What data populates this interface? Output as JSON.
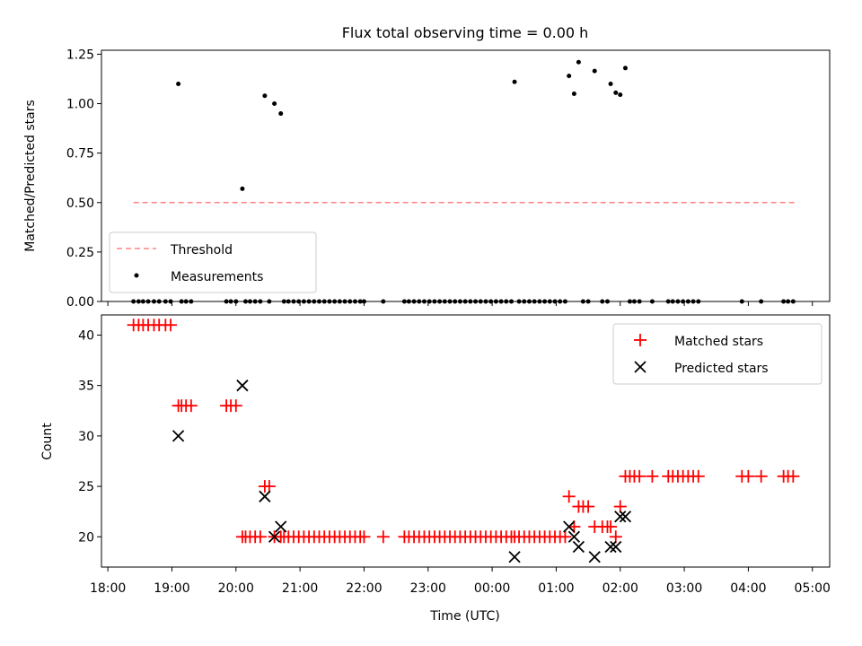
{
  "chart_data": [
    {
      "type": "scatter",
      "title": "Flux total observing time = 0.00 h",
      "xlabel": "",
      "ylabel": "Matched/Predicted stars",
      "xlim": [
        17.9,
        29.27
      ],
      "ylim": [
        0,
        1.27
      ],
      "yticks": [
        0,
        0.25,
        0.5,
        0.75,
        1.0,
        1.25
      ],
      "ytick_labels": [
        "0.00",
        "0.25",
        "0.50",
        "0.75",
        "1.00",
        "1.25"
      ],
      "legend": [
        "Threshold",
        "Measurements"
      ],
      "legend_position": "bottom-left",
      "threshold": {
        "name": "Threshold",
        "y": 0.5,
        "x_range": [
          18.4,
          28.75
        ],
        "color": "#ff8080",
        "style": "dashed"
      },
      "measurements": {
        "name": "Measurements",
        "color": "#000000",
        "points": [
          [
            19.1,
            1.1
          ],
          [
            20.1,
            0.57
          ],
          [
            20.45,
            1.04
          ],
          [
            20.6,
            1.0
          ],
          [
            20.7,
            0.95
          ],
          [
            24.35,
            1.11
          ],
          [
            25.2,
            1.14
          ],
          [
            25.28,
            1.05
          ],
          [
            25.35,
            1.21
          ],
          [
            25.6,
            1.165
          ],
          [
            25.85,
            1.1
          ],
          [
            25.93,
            1.055
          ],
          [
            26.0,
            1.045
          ],
          [
            26.08,
            1.18
          ],
          [
            18.4,
            0
          ],
          [
            18.48,
            0
          ],
          [
            18.55,
            0
          ],
          [
            18.63,
            0
          ],
          [
            18.72,
            0
          ],
          [
            18.8,
            0
          ],
          [
            18.9,
            0
          ],
          [
            18.98,
            0
          ],
          [
            19.15,
            0
          ],
          [
            19.22,
            0
          ],
          [
            19.3,
            0
          ],
          [
            19.85,
            0
          ],
          [
            19.92,
            0
          ],
          [
            20.0,
            0
          ],
          [
            20.15,
            0
          ],
          [
            20.22,
            0
          ],
          [
            20.3,
            0
          ],
          [
            20.38,
            0
          ],
          [
            20.52,
            0
          ],
          [
            20.75,
            0
          ],
          [
            20.82,
            0
          ],
          [
            20.9,
            0
          ],
          [
            20.98,
            0
          ],
          [
            21.06,
            0
          ],
          [
            21.14,
            0
          ],
          [
            21.22,
            0
          ],
          [
            21.3,
            0
          ],
          [
            21.38,
            0
          ],
          [
            21.46,
            0
          ],
          [
            21.54,
            0
          ],
          [
            21.62,
            0
          ],
          [
            21.7,
            0
          ],
          [
            21.78,
            0
          ],
          [
            21.86,
            0
          ],
          [
            21.94,
            0
          ],
          [
            22.0,
            0
          ],
          [
            22.3,
            0
          ],
          [
            22.63,
            0
          ],
          [
            22.7,
            0
          ],
          [
            22.78,
            0
          ],
          [
            22.86,
            0
          ],
          [
            22.94,
            0
          ],
          [
            23.02,
            0
          ],
          [
            23.1,
            0
          ],
          [
            23.18,
            0
          ],
          [
            23.26,
            0
          ],
          [
            23.34,
            0
          ],
          [
            23.42,
            0
          ],
          [
            23.5,
            0
          ],
          [
            23.58,
            0
          ],
          [
            23.66,
            0
          ],
          [
            23.74,
            0
          ],
          [
            23.82,
            0
          ],
          [
            23.9,
            0
          ],
          [
            23.98,
            0
          ],
          [
            24.06,
            0
          ],
          [
            24.14,
            0
          ],
          [
            24.22,
            0
          ],
          [
            24.3,
            0
          ],
          [
            24.42,
            0
          ],
          [
            24.5,
            0
          ],
          [
            24.58,
            0
          ],
          [
            24.66,
            0
          ],
          [
            24.74,
            0
          ],
          [
            24.82,
            0
          ],
          [
            24.9,
            0
          ],
          [
            24.98,
            0
          ],
          [
            25.06,
            0
          ],
          [
            25.14,
            0
          ],
          [
            25.42,
            0
          ],
          [
            25.5,
            0
          ],
          [
            25.72,
            0
          ],
          [
            25.8,
            0
          ],
          [
            26.15,
            0
          ],
          [
            26.22,
            0
          ],
          [
            26.3,
            0
          ],
          [
            26.5,
            0
          ],
          [
            26.75,
            0
          ],
          [
            26.82,
            0
          ],
          [
            26.9,
            0
          ],
          [
            26.98,
            0
          ],
          [
            27.06,
            0
          ],
          [
            27.14,
            0
          ],
          [
            27.22,
            0
          ],
          [
            27.9,
            0
          ],
          [
            28.2,
            0
          ],
          [
            28.55,
            0
          ],
          [
            28.62,
            0
          ],
          [
            28.7,
            0
          ]
        ]
      }
    },
    {
      "type": "scatter",
      "title": "",
      "xlabel": "Time (UTC)",
      "ylabel": "Count",
      "xlim": [
        17.9,
        29.27
      ],
      "ylim": [
        17,
        42
      ],
      "yticks": [
        20,
        25,
        30,
        35,
        40
      ],
      "ytick_labels": [
        "20",
        "25",
        "30",
        "35",
        "40"
      ],
      "xticks": [
        18,
        19,
        20,
        21,
        22,
        23,
        24,
        25,
        26,
        27,
        28,
        29
      ],
      "xtick_labels": [
        "18:00",
        "19:00",
        "20:00",
        "21:00",
        "22:00",
        "23:00",
        "00:00",
        "01:00",
        "02:00",
        "03:00",
        "04:00",
        "05:00"
      ],
      "legend": [
        "Matched stars",
        "Predicted stars"
      ],
      "legend_position": "top-right",
      "series": [
        {
          "name": "Matched stars",
          "marker": "+",
          "color": "#ff0000",
          "points": [
            [
              18.4,
              41
            ],
            [
              18.48,
              41
            ],
            [
              18.55,
              41
            ],
            [
              18.63,
              41
            ],
            [
              18.72,
              41
            ],
            [
              18.8,
              41
            ],
            [
              18.9,
              41
            ],
            [
              18.98,
              41
            ],
            [
              19.1,
              33
            ],
            [
              19.15,
              33
            ],
            [
              19.22,
              33
            ],
            [
              19.3,
              33
            ],
            [
              19.85,
              33
            ],
            [
              19.92,
              33
            ],
            [
              20.0,
              33
            ],
            [
              20.1,
              20
            ],
            [
              20.15,
              20
            ],
            [
              20.22,
              20
            ],
            [
              20.3,
              20
            ],
            [
              20.38,
              20
            ],
            [
              20.45,
              25
            ],
            [
              20.52,
              25
            ],
            [
              20.6,
              20
            ],
            [
              20.7,
              20
            ],
            [
              20.75,
              20
            ],
            [
              20.82,
              20
            ],
            [
              20.9,
              20
            ],
            [
              20.98,
              20
            ],
            [
              21.06,
              20
            ],
            [
              21.14,
              20
            ],
            [
              21.22,
              20
            ],
            [
              21.3,
              20
            ],
            [
              21.38,
              20
            ],
            [
              21.46,
              20
            ],
            [
              21.54,
              20
            ],
            [
              21.62,
              20
            ],
            [
              21.7,
              20
            ],
            [
              21.78,
              20
            ],
            [
              21.86,
              20
            ],
            [
              21.94,
              20
            ],
            [
              22.0,
              20
            ],
            [
              22.3,
              20
            ],
            [
              22.63,
              20
            ],
            [
              22.7,
              20
            ],
            [
              22.78,
              20
            ],
            [
              22.86,
              20
            ],
            [
              22.94,
              20
            ],
            [
              23.02,
              20
            ],
            [
              23.1,
              20
            ],
            [
              23.18,
              20
            ],
            [
              23.26,
              20
            ],
            [
              23.34,
              20
            ],
            [
              23.42,
              20
            ],
            [
              23.5,
              20
            ],
            [
              23.58,
              20
            ],
            [
              23.66,
              20
            ],
            [
              23.74,
              20
            ],
            [
              23.82,
              20
            ],
            [
              23.9,
              20
            ],
            [
              23.98,
              20
            ],
            [
              24.06,
              20
            ],
            [
              24.14,
              20
            ],
            [
              24.22,
              20
            ],
            [
              24.3,
              20
            ],
            [
              24.35,
              20
            ],
            [
              24.42,
              20
            ],
            [
              24.5,
              20
            ],
            [
              24.58,
              20
            ],
            [
              24.66,
              20
            ],
            [
              24.74,
              20
            ],
            [
              24.82,
              20
            ],
            [
              24.9,
              20
            ],
            [
              24.98,
              20
            ],
            [
              25.06,
              20
            ],
            [
              25.14,
              20
            ],
            [
              25.2,
              24
            ],
            [
              25.28,
              21
            ],
            [
              25.35,
              23
            ],
            [
              25.42,
              23
            ],
            [
              25.5,
              23
            ],
            [
              25.6,
              21
            ],
            [
              25.72,
              21
            ],
            [
              25.8,
              21
            ],
            [
              25.85,
              21
            ],
            [
              25.93,
              20
            ],
            [
              26.0,
              23
            ],
            [
              26.08,
              26
            ],
            [
              26.15,
              26
            ],
            [
              26.22,
              26
            ],
            [
              26.3,
              26
            ],
            [
              26.5,
              26
            ],
            [
              26.75,
              26
            ],
            [
              26.82,
              26
            ],
            [
              26.9,
              26
            ],
            [
              26.98,
              26
            ],
            [
              27.06,
              26
            ],
            [
              27.14,
              26
            ],
            [
              27.22,
              26
            ],
            [
              27.9,
              26
            ],
            [
              28.0,
              26
            ],
            [
              28.2,
              26
            ],
            [
              28.55,
              26
            ],
            [
              28.62,
              26
            ],
            [
              28.7,
              26
            ]
          ]
        },
        {
          "name": "Predicted stars",
          "marker": "x",
          "color": "#000000",
          "points": [
            [
              19.1,
              30
            ],
            [
              20.1,
              35
            ],
            [
              20.45,
              24
            ],
            [
              20.6,
              20
            ],
            [
              20.7,
              21
            ],
            [
              24.35,
              18
            ],
            [
              25.2,
              21
            ],
            [
              25.28,
              20
            ],
            [
              25.35,
              19
            ],
            [
              25.6,
              18
            ],
            [
              25.85,
              19
            ],
            [
              25.93,
              19
            ],
            [
              26.0,
              22
            ],
            [
              26.08,
              22
            ]
          ]
        }
      ]
    }
  ]
}
